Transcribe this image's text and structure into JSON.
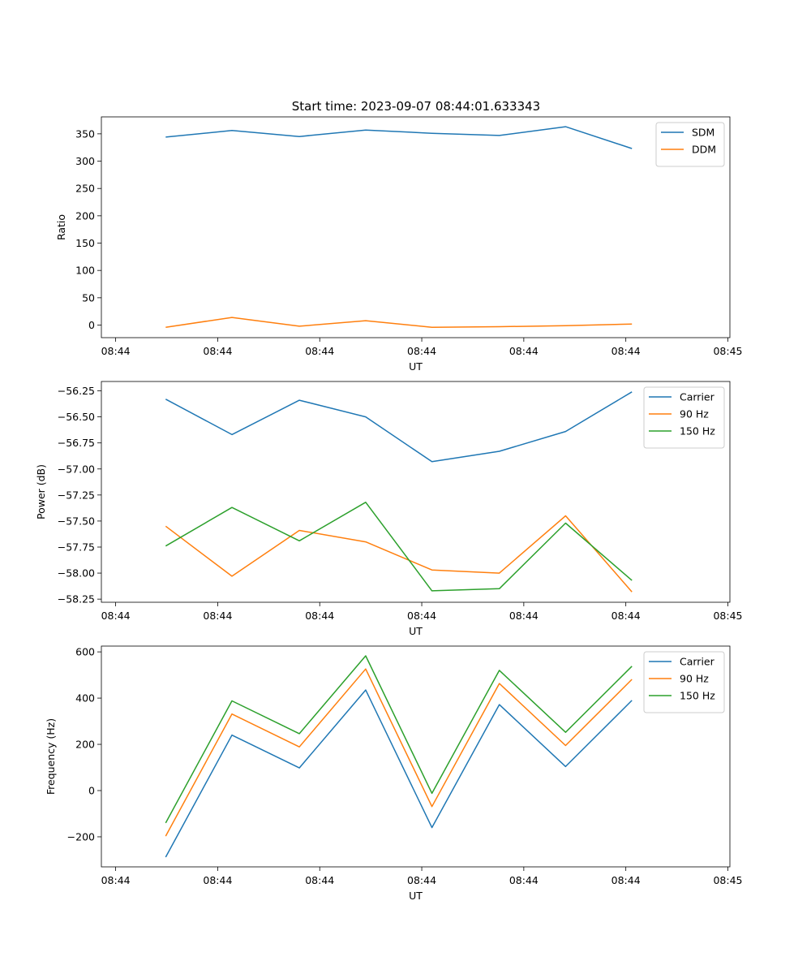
{
  "figure_title": "Start time: 2023-09-07 08:44:01.633343",
  "chart_data": [
    {
      "type": "line",
      "xlabel": "UT",
      "ylabel": "Ratio",
      "x_ticks": [
        "08:44",
        "08:44",
        "08:44",
        "08:44",
        "08:44",
        "08:44",
        "08:45"
      ],
      "x_tick_values": [
        0,
        1,
        2,
        3,
        4,
        5,
        6
      ],
      "x": [
        0.49,
        1.14,
        1.8,
        2.45,
        3.1,
        3.76,
        4.41,
        5.06
      ],
      "xlim": [
        -0.14,
        6.02
      ],
      "ylim": [
        -23,
        381
      ],
      "y_ticks": [
        0,
        50,
        100,
        150,
        200,
        250,
        300,
        350
      ],
      "legend_loc": "top-right",
      "series": [
        {
          "name": "SDM",
          "color": "#1f77b4",
          "values": [
            344,
            356,
            345,
            357,
            351,
            347,
            363,
            323
          ]
        },
        {
          "name": "DDM",
          "color": "#ff7f0e",
          "values": [
            -4,
            14,
            -2,
            8,
            -4,
            -3,
            -1,
            2
          ]
        }
      ]
    },
    {
      "type": "line",
      "xlabel": "UT",
      "ylabel": "Power (dB)",
      "x_ticks": [
        "08:44",
        "08:44",
        "08:44",
        "08:44",
        "08:44",
        "08:44",
        "08:45"
      ],
      "x_tick_values": [
        0,
        1,
        2,
        3,
        4,
        5,
        6
      ],
      "x": [
        0.49,
        1.14,
        1.8,
        2.45,
        3.1,
        3.76,
        4.41,
        5.06
      ],
      "xlim": [
        -0.14,
        6.02
      ],
      "ylim": [
        -58.28,
        -56.16
      ],
      "y_ticks": [
        -58.25,
        -58.0,
        -57.75,
        -57.5,
        -57.25,
        -57.0,
        -56.75,
        -56.5,
        -56.25
      ],
      "y_tick_labels": [
        "−58.25",
        "−58.00",
        "−57.75",
        "−57.50",
        "−57.25",
        "−57.00",
        "−56.75",
        "−56.50",
        "−56.25"
      ],
      "legend_loc": "top-right",
      "series": [
        {
          "name": "Carrier",
          "color": "#1f77b4",
          "values": [
            -56.33,
            -56.67,
            -56.34,
            -56.5,
            -56.93,
            -56.83,
            -56.64,
            -56.26
          ]
        },
        {
          "name": "90 Hz",
          "color": "#ff7f0e",
          "values": [
            -57.55,
            -58.03,
            -57.59,
            -57.7,
            -57.97,
            -58.0,
            -57.45,
            -58.18
          ]
        },
        {
          "name": "150 Hz",
          "color": "#2ca02c",
          "values": [
            -57.74,
            -57.37,
            -57.69,
            -57.32,
            -58.17,
            -58.15,
            -57.52,
            -58.07
          ]
        }
      ]
    },
    {
      "type": "line",
      "xlabel": "UT",
      "ylabel": "Frequency (Hz)",
      "x_ticks": [
        "08:44",
        "08:44",
        "08:44",
        "08:44",
        "08:44",
        "08:44",
        "08:45"
      ],
      "x_tick_values": [
        0,
        1,
        2,
        3,
        4,
        5,
        6
      ],
      "x": [
        0.49,
        1.14,
        1.8,
        2.45,
        3.1,
        3.76,
        4.41,
        5.06
      ],
      "xlim": [
        -0.14,
        6.02
      ],
      "ylim": [
        -330,
        625
      ],
      "y_ticks": [
        -200,
        0,
        200,
        400,
        600
      ],
      "y_tick_labels": [
        "−200",
        "0",
        "200",
        "400",
        "600"
      ],
      "legend_loc": "top-right",
      "series": [
        {
          "name": "Carrier",
          "color": "#1f77b4",
          "values": [
            -288,
            240,
            98,
            435,
            -160,
            372,
            104,
            390
          ]
        },
        {
          "name": "90 Hz",
          "color": "#ff7f0e",
          "values": [
            -197,
            331,
            189,
            526,
            -69,
            463,
            195,
            481
          ]
        },
        {
          "name": "150 Hz",
          "color": "#2ca02c",
          "values": [
            -140,
            388,
            246,
            583,
            -12,
            520,
            252,
            538
          ]
        }
      ]
    }
  ]
}
